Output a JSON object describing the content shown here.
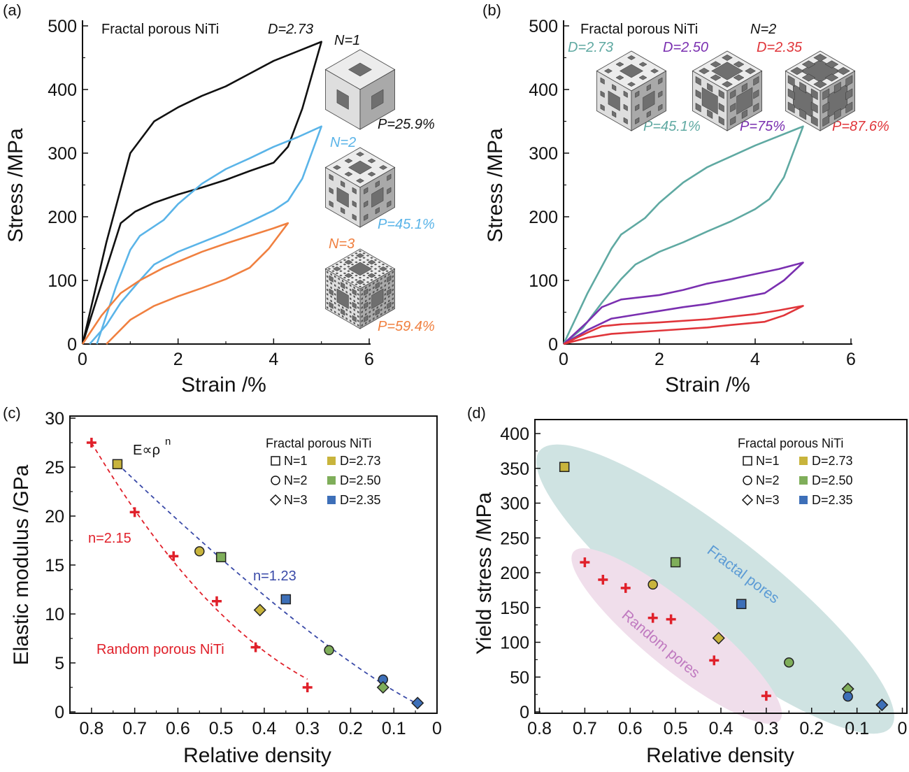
{
  "colors": {
    "n1": "#111111",
    "n2": "#5ab4e8",
    "n3": "#f08040",
    "d273": "#5fa9a2",
    "d250": "#7a2fb0",
    "d235": "#e0353a",
    "fill_d273": "#c8b43c",
    "fill_d250": "#7fae5a",
    "fill_d235": "#3d6fb8",
    "random": "#e0202a",
    "fit_fractal": "#3a4aa8",
    "fractal_region": "#cfe3e2",
    "random_region": "#f0deeb",
    "fractal_label": "#5b9bd5",
    "random_label": "#c07ac0"
  },
  "chart_data": [
    {
      "panel": "(a)",
      "type": "line",
      "title": "Fractal porous NiTi",
      "title_param": "D=2.73",
      "xlabel": "Strain /%",
      "ylabel": "Stress /MPa",
      "xlim": [
        0,
        6
      ],
      "ylim": [
        0,
        500
      ],
      "xticks": [
        "0",
        "2",
        "4",
        "6"
      ],
      "yticks": [
        "0",
        "100",
        "200",
        "300",
        "400",
        "500"
      ],
      "series": [
        {
          "name": "N=1",
          "porosity": "P=25.9%",
          "color": "#111111",
          "x": [
            0,
            0.5,
            1,
            1.5,
            2,
            2.5,
            3,
            3.5,
            4,
            4.5,
            5,
            4.6,
            4.3,
            4,
            3.5,
            3,
            2.5,
            2,
            1.5,
            1.1,
            0.8,
            0.4,
            0
          ],
          "y": [
            0,
            160,
            300,
            350,
            372,
            390,
            405,
            425,
            445,
            460,
            475,
            370,
            310,
            285,
            272,
            258,
            246,
            235,
            222,
            208,
            190,
            95,
            0
          ]
        },
        {
          "name": "N=2",
          "porosity": "P=45.1%",
          "color": "#5ab4e8",
          "x": [
            0.3,
            0.7,
            1,
            1.2,
            1.7,
            2,
            2.5,
            3,
            3.5,
            4,
            4.5,
            5,
            4.6,
            4.3,
            4,
            3.5,
            3,
            2.5,
            2,
            1.5,
            1.2,
            0.8,
            0.5,
            0.15
          ],
          "y": [
            0,
            90,
            148,
            170,
            195,
            220,
            252,
            275,
            292,
            310,
            325,
            342,
            260,
            225,
            210,
            192,
            175,
            160,
            145,
            125,
            100,
            65,
            30,
            0
          ]
        },
        {
          "name": "N=3",
          "porosity": "P=59.4%",
          "color": "#f08040",
          "x": [
            0,
            0.4,
            0.8,
            1.2,
            1.7,
            2.5,
            3,
            3.5,
            4,
            4.3,
            3.9,
            3.5,
            3,
            2.5,
            2,
            1.5,
            1,
            0.5
          ],
          "y": [
            0,
            45,
            80,
            100,
            120,
            145,
            158,
            170,
            182,
            190,
            150,
            120,
            102,
            88,
            75,
            60,
            38,
            0
          ]
        }
      ]
    },
    {
      "panel": "(b)",
      "type": "line",
      "title": "Fractal porous NiTi",
      "title_param": "N=2",
      "xlabel": "Strain /%",
      "ylabel": "Stress /MPa",
      "xlim": [
        0,
        6
      ],
      "ylim": [
        0,
        500
      ],
      "xticks": [
        "0",
        "2",
        "4",
        "6"
      ],
      "yticks": [
        "0",
        "100",
        "200",
        "300",
        "400",
        "500"
      ],
      "series": [
        {
          "name": "D=2.73",
          "porosity": "P=45.1%",
          "color": "#5fa9a2",
          "x": [
            0,
            0.5,
            1,
            1.2,
            1.7,
            2,
            2.5,
            3,
            3.5,
            4,
            4.5,
            5,
            4.6,
            4.3,
            4,
            3.5,
            3,
            2.5,
            2,
            1.5,
            1.2,
            0.8,
            0.4,
            0
          ],
          "y": [
            0,
            80,
            150,
            172,
            198,
            222,
            254,
            278,
            295,
            312,
            327,
            342,
            262,
            228,
            212,
            193,
            177,
            160,
            145,
            125,
            102,
            65,
            25,
            0
          ]
        },
        {
          "name": "D=2.50",
          "porosity": "P=75%",
          "color": "#7a2fb0",
          "x": [
            0,
            0.5,
            0.8,
            1.2,
            2,
            2.5,
            3,
            3.5,
            4,
            4.5,
            5,
            4.6,
            4.2,
            3.5,
            3,
            2.5,
            2,
            1.5,
            1,
            0.5,
            0
          ],
          "y": [
            0,
            35,
            58,
            70,
            77,
            85,
            95,
            102,
            110,
            118,
            128,
            100,
            80,
            70,
            63,
            58,
            52,
            46,
            40,
            22,
            0
          ]
        },
        {
          "name": "D=2.35",
          "porosity": "P=87.6%",
          "color": "#e0353a",
          "x": [
            0,
            0.5,
            0.8,
            1.2,
            2,
            3,
            4,
            4.5,
            5,
            4.6,
            4.2,
            3.5,
            3,
            2,
            1,
            0.5,
            0
          ],
          "y": [
            0,
            18,
            28,
            31,
            34,
            39,
            47,
            53,
            60,
            45,
            35,
            30,
            26,
            21,
            16,
            10,
            0
          ]
        }
      ]
    },
    {
      "panel": "(c)",
      "type": "scatter",
      "xlabel": "Relative density",
      "ylabel": "Elastic modulus /GPa",
      "xlim": [
        0.85,
        0
      ],
      "ylim": [
        0,
        30
      ],
      "xticks": [
        "0.8",
        "0.7",
        "0.6",
        "0.5",
        "0.4",
        "0.3",
        "0.2",
        "0.1",
        "0"
      ],
      "yticks": [
        "0",
        "5",
        "10",
        "15",
        "20",
        "25",
        "30"
      ],
      "annotations": {
        "law": "E∝ρ",
        "law_sup": "n",
        "random_fit": "n=2.15",
        "fractal_fit": "n=1.23",
        "random_label": "Random porous NiTi"
      },
      "fits": [
        {
          "group": "random",
          "exponent": 2.15,
          "coefficient": 44.4,
          "x_range": [
            0.8,
            0.3
          ]
        },
        {
          "group": "fractal",
          "exponent": 1.23,
          "coefficient": 36.7,
          "x_range": [
            0.74,
            0.045
          ]
        }
      ],
      "random": {
        "x": [
          0.8,
          0.7,
          0.61,
          0.51,
          0.42,
          0.3
        ],
        "y": [
          27.5,
          20.4,
          15.9,
          11.3,
          6.6,
          2.5
        ]
      },
      "fractal": [
        {
          "N": 1,
          "D": "2.73",
          "x": 0.74,
          "y": 25.3
        },
        {
          "N": 2,
          "D": "2.73",
          "x": 0.55,
          "y": 16.4
        },
        {
          "N": 1,
          "D": "2.50",
          "x": 0.5,
          "y": 15.8
        },
        {
          "N": 1,
          "D": "2.35",
          "x": 0.35,
          "y": 11.5
        },
        {
          "N": 3,
          "D": "2.73",
          "x": 0.41,
          "y": 10.4
        },
        {
          "N": 2,
          "D": "2.50",
          "x": 0.25,
          "y": 6.3
        },
        {
          "N": 2,
          "D": "2.35",
          "x": 0.125,
          "y": 3.3
        },
        {
          "N": 3,
          "D": "2.50",
          "x": 0.125,
          "y": 2.5
        },
        {
          "N": 3,
          "D": "2.35",
          "x": 0.045,
          "y": 0.9
        }
      ]
    },
    {
      "panel": "(d)",
      "type": "scatter",
      "xlabel": "Relative density",
      "ylabel": "Yield stress /MPa",
      "xlim": [
        0.81,
        -0.01
      ],
      "ylim": [
        0,
        420
      ],
      "xticks": [
        "0.8",
        "0.7",
        "0.6",
        "0.5",
        "0.4",
        "0.3",
        "0.2",
        "0.1",
        "0"
      ],
      "yticks": [
        "0",
        "50",
        "100",
        "150",
        "200",
        "250",
        "300",
        "350",
        "400"
      ],
      "annotations": {
        "fractal_region": "Fractal pores",
        "random_region": "Random pores"
      },
      "random": {
        "x": [
          0.7,
          0.66,
          0.61,
          0.55,
          0.51,
          0.415,
          0.3
        ],
        "y": [
          215,
          190,
          178,
          135,
          133,
          74,
          23
        ]
      },
      "fractal": [
        {
          "N": 1,
          "D": "2.73",
          "x": 0.745,
          "y": 352
        },
        {
          "N": 1,
          "D": "2.50",
          "x": 0.5,
          "y": 215
        },
        {
          "N": 2,
          "D": "2.73",
          "x": 0.55,
          "y": 183
        },
        {
          "N": 1,
          "D": "2.35",
          "x": 0.355,
          "y": 155
        },
        {
          "N": 3,
          "D": "2.73",
          "x": 0.405,
          "y": 106
        },
        {
          "N": 2,
          "D": "2.50",
          "x": 0.25,
          "y": 71
        },
        {
          "N": 3,
          "D": "2.50",
          "x": 0.12,
          "y": 33
        },
        {
          "N": 2,
          "D": "2.35",
          "x": 0.12,
          "y": 22
        },
        {
          "N": 3,
          "D": "2.35",
          "x": 0.045,
          "y": 10
        }
      ]
    }
  ],
  "legend": {
    "title": "Fractal porous NiTi",
    "shapes": [
      {
        "shape": "square",
        "label": "N=1"
      },
      {
        "shape": "circle",
        "label": "N=2"
      },
      {
        "shape": "diamond",
        "label": "N=3"
      }
    ],
    "fills": [
      {
        "D": "2.73",
        "label": "D=2.73"
      },
      {
        "D": "2.50",
        "label": "D=2.50"
      },
      {
        "D": "2.35",
        "label": "D=2.35"
      }
    ]
  }
}
